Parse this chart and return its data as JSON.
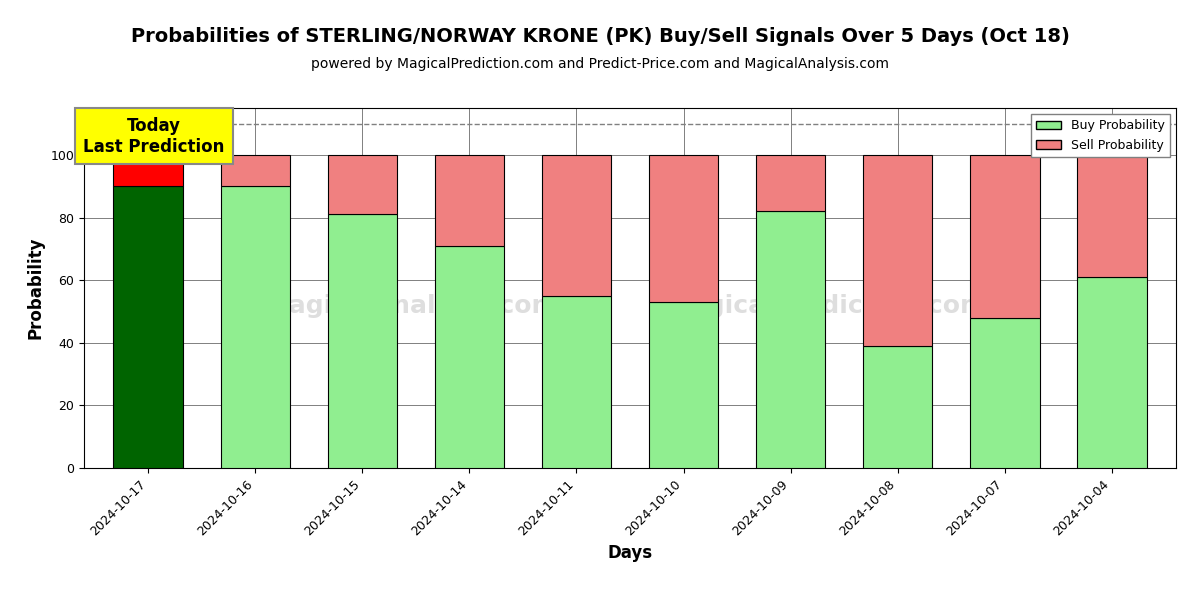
{
  "title": "Probabilities of STERLING/NORWAY KRONE (PK) Buy/Sell Signals Over 5 Days (Oct 18)",
  "subtitle": "powered by MagicalPrediction.com and Predict-Price.com and MagicalAnalysis.com",
  "xlabel": "Days",
  "ylabel": "Probability",
  "categories": [
    "2024-10-17",
    "2024-10-16",
    "2024-10-15",
    "2024-10-14",
    "2024-10-11",
    "2024-10-10",
    "2024-10-09",
    "2024-10-08",
    "2024-10-07",
    "2024-10-04"
  ],
  "buy_values": [
    90,
    90,
    81,
    71,
    55,
    53,
    82,
    39,
    48,
    61
  ],
  "sell_values": [
    10,
    10,
    19,
    29,
    45,
    47,
    18,
    61,
    52,
    39
  ],
  "buy_colors": [
    "#006400",
    "#90EE90",
    "#90EE90",
    "#90EE90",
    "#90EE90",
    "#90EE90",
    "#90EE90",
    "#90EE90",
    "#90EE90",
    "#90EE90"
  ],
  "sell_colors": [
    "#FF0000",
    "#F08080",
    "#F08080",
    "#F08080",
    "#F08080",
    "#F08080",
    "#F08080",
    "#F08080",
    "#F08080",
    "#F08080"
  ],
  "today_label": "Today\nLast Prediction",
  "legend_buy_color": "#90EE90",
  "legend_sell_color": "#F08080",
  "today_box_color": "#FFFF00",
  "ylim": [
    0,
    115
  ],
  "dashed_line_y": 110,
  "title_fontsize": 14,
  "subtitle_fontsize": 10,
  "axis_label_fontsize": 12,
  "tick_fontsize": 9
}
